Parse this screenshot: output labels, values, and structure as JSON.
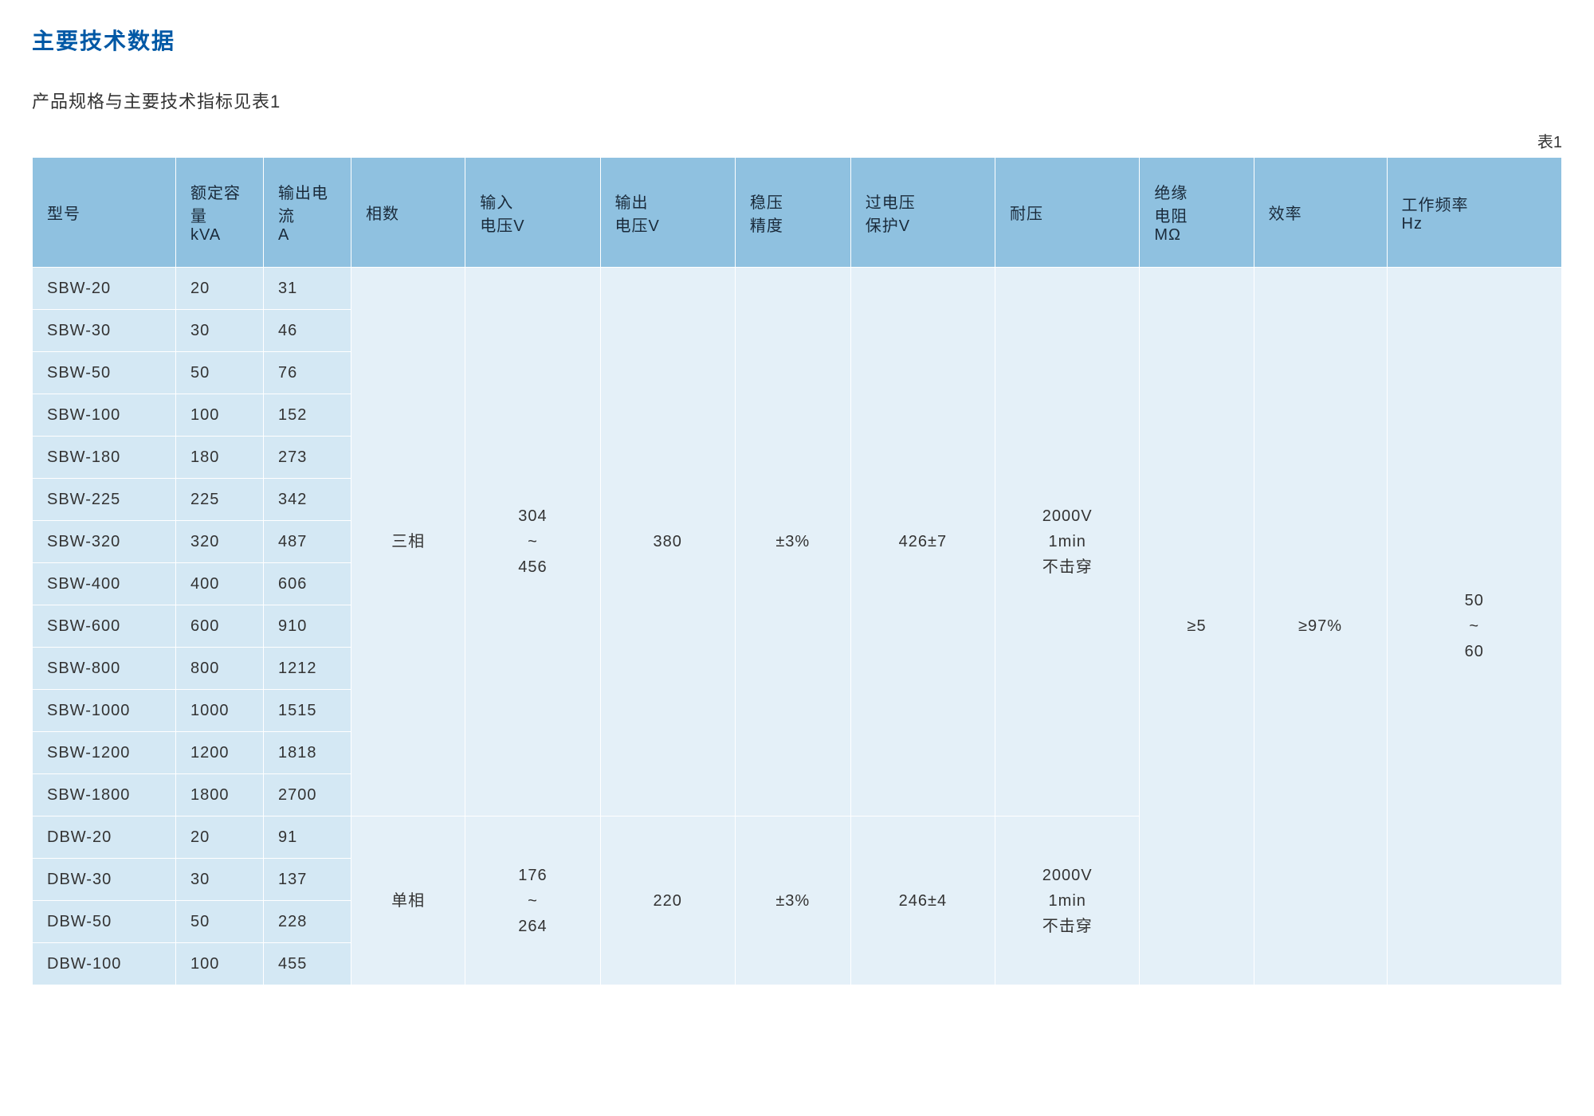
{
  "colors": {
    "title": "#0058a5",
    "header_bg": "#8fc1e0",
    "body_bg_light": "#d4e8f4",
    "body_bg_lighter": "#e4f0f8",
    "header_text": "#1a2a3a",
    "body_text": "#333333"
  },
  "title": "主要技术数据",
  "subtitle": "产品规格与主要技术指标见表1",
  "table_label": "表1",
  "columns": [
    "型号",
    "额定容量\nkVA",
    "输出电流\nA",
    "相数",
    "输入\n电压V",
    "输出\n电压V",
    "稳压\n精度",
    "过电压\n保护V",
    "耐压",
    "绝缘\n电阻\nMΩ",
    "效率",
    "工作频率\nHz"
  ],
  "rows": [
    {
      "model": "SBW-20",
      "kva": "20",
      "amp": "31"
    },
    {
      "model": "SBW-30",
      "kva": "30",
      "amp": "46"
    },
    {
      "model": "SBW-50",
      "kva": "50",
      "amp": "76"
    },
    {
      "model": "SBW-100",
      "kva": "100",
      "amp": "152"
    },
    {
      "model": "SBW-180",
      "kva": "180",
      "amp": "273"
    },
    {
      "model": "SBW-225",
      "kva": "225",
      "amp": "342"
    },
    {
      "model": "SBW-320",
      "kva": "320",
      "amp": "487"
    },
    {
      "model": "SBW-400",
      "kva": "400",
      "amp": "606"
    },
    {
      "model": "SBW-600",
      "kva": "600",
      "amp": "910"
    },
    {
      "model": "SBW-800",
      "kva": "800",
      "amp": "1212"
    },
    {
      "model": "SBW-1000",
      "kva": "1000",
      "amp": "1515"
    },
    {
      "model": "SBW-1200",
      "kva": "1200",
      "amp": "1818"
    },
    {
      "model": "SBW-1800",
      "kva": "1800",
      "amp": "2700"
    },
    {
      "model": "DBW-20",
      "kva": "20",
      "amp": "91"
    },
    {
      "model": "DBW-30",
      "kva": "30",
      "amp": "137"
    },
    {
      "model": "DBW-50",
      "kva": "50",
      "amp": "228"
    },
    {
      "model": "DBW-100",
      "kva": "100",
      "amp": "455"
    }
  ],
  "merged": {
    "sbw": {
      "phase": "三相",
      "input_voltage": "304\n~\n456",
      "output_voltage": "380",
      "precision": "±3%",
      "overvoltage": "426±7",
      "withstand": "2000V\n1min\n不击穿",
      "rowspan": 13
    },
    "dbw": {
      "phase": "单相",
      "input_voltage": "176\n~\n264",
      "output_voltage": "220",
      "precision": "±3%",
      "overvoltage": "246±4",
      "withstand": "2000V\n1min\n不击穿",
      "rowspan": 4
    },
    "common": {
      "insulation": "≥5",
      "efficiency": "≥97%",
      "frequency": "50\n~\n60",
      "rowspan": 17
    }
  }
}
